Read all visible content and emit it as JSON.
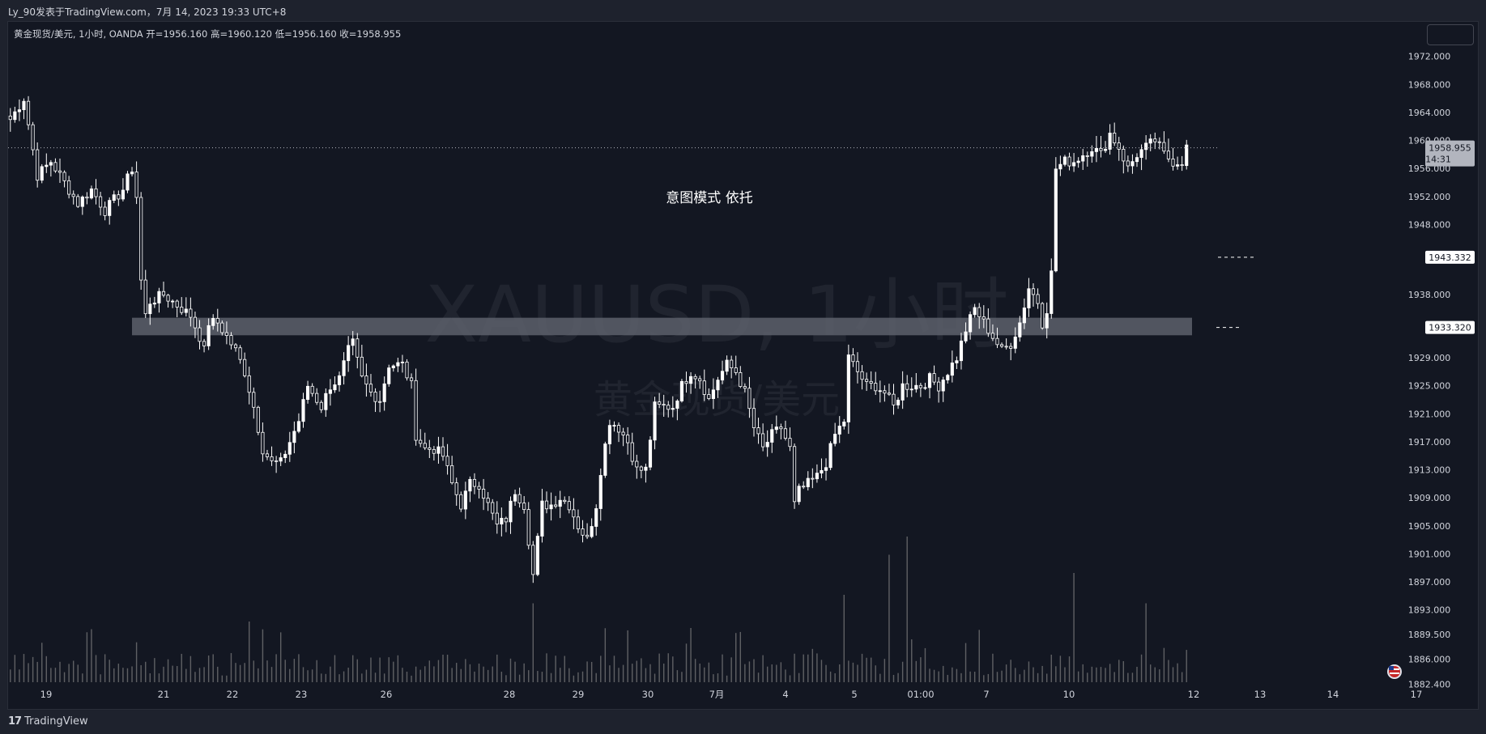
{
  "header": {
    "publish_info": "Ly_90发表于TradingView.com，7月 14, 2023 19:33 UTC+8"
  },
  "legend": {
    "text": "黄金现货/美元, 1小时, OANDA  开=1956.160  高=1960.120  低=1956.160  收=1958.955"
  },
  "watermark": {
    "symbol": "XAUUSD, 1小时",
    "description": "黄金现货/美元"
  },
  "annotation": {
    "text": "意图模式 依托"
  },
  "footer": {
    "brand_logo": "17",
    "brand_name": "TradingView"
  },
  "colors": {
    "background": "#131722",
    "frame": "#1e222d",
    "candle": "#ffffff",
    "volume": "#808080",
    "zone": "#5d606b"
  },
  "chart_data": {
    "type": "candlestick",
    "symbol": "XAUUSD",
    "timeframe": "1小时",
    "ylim": [
      1882.4,
      1975.6
    ],
    "y_ticks": [
      "1972.000",
      "1968.000",
      "1964.000",
      "1960.000",
      "1956.000",
      "1952.000",
      "1948.000",
      "1938.000",
      "1933.320",
      "1929.000",
      "1925.000",
      "1921.000",
      "1917.000",
      "1913.000",
      "1909.000",
      "1905.000",
      "1901.000",
      "1897.000",
      "1893.000",
      "1889.500",
      "1886.000",
      "1882.400"
    ],
    "x_ticks": [
      "19",
      "21",
      "22",
      "23",
      "26",
      "28",
      "29",
      "30",
      "7月",
      "4",
      "5",
      "01:00",
      "7",
      "10",
      "12",
      "13",
      "14",
      "17"
    ],
    "current_price": {
      "label": "1958.955",
      "countdown": "14:31",
      "value": 1958.955
    },
    "price_markers": [
      {
        "label": "1943.332",
        "value": 1943.332
      },
      {
        "label": "1933.320",
        "value": 1933.32
      }
    ],
    "support_zone": {
      "low": 1932.2,
      "high": 1934.7
    },
    "path_points": [
      [
        0,
        1963
      ],
      [
        3,
        1966
      ],
      [
        6,
        1955
      ],
      [
        9,
        1957
      ],
      [
        12,
        1954
      ],
      [
        15,
        1951
      ],
      [
        18,
        1953
      ],
      [
        21,
        1950
      ],
      [
        25,
        1953
      ],
      [
        27,
        1956
      ],
      [
        28,
        1952
      ],
      [
        29,
        1940
      ],
      [
        30,
        1935
      ],
      [
        31,
        1937
      ],
      [
        34,
        1938
      ],
      [
        36,
        1937
      ],
      [
        38,
        1936
      ],
      [
        40,
        1935
      ],
      [
        42,
        1932
      ],
      [
        43,
        1930
      ],
      [
        44,
        1934
      ],
      [
        46,
        1934
      ],
      [
        48,
        1932
      ],
      [
        50,
        1930
      ],
      [
        52,
        1927
      ],
      [
        54,
        1922
      ],
      [
        56,
        1916
      ],
      [
        58,
        1914
      ],
      [
        60,
        1914
      ],
      [
        62,
        1917
      ],
      [
        64,
        1920
      ],
      [
        66,
        1925
      ],
      [
        67,
        1924
      ],
      [
        69,
        1922
      ],
      [
        71,
        1925
      ],
      [
        73,
        1926
      ],
      [
        75,
        1930
      ],
      [
        76,
        1931
      ],
      [
        78,
        1926
      ],
      [
        80,
        1924
      ],
      [
        82,
        1923
      ],
      [
        84,
        1928
      ],
      [
        87,
        1928
      ],
      [
        89,
        1925
      ],
      [
        90,
        1918
      ],
      [
        92,
        1916
      ],
      [
        94,
        1916
      ],
      [
        96,
        1915
      ],
      [
        98,
        1911
      ],
      [
        100,
        1908
      ],
      [
        102,
        1911
      ],
      [
        104,
        1911
      ],
      [
        106,
        1908
      ],
      [
        108,
        1905
      ],
      [
        110,
        1906
      ],
      [
        112,
        1910
      ],
      [
        114,
        1908
      ],
      [
        116,
        1898
      ],
      [
        118,
        1908
      ],
      [
        120,
        1908
      ],
      [
        122,
        1909
      ],
      [
        124,
        1908
      ],
      [
        126,
        1905
      ],
      [
        128,
        1903
      ],
      [
        130,
        1908
      ],
      [
        131,
        1913
      ],
      [
        133,
        1920
      ],
      [
        135,
        1919
      ],
      [
        137,
        1917
      ],
      [
        139,
        1913
      ],
      [
        141,
        1913
      ],
      [
        143,
        1922
      ],
      [
        145,
        1922
      ],
      [
        147,
        1922
      ],
      [
        149,
        1925
      ],
      [
        151,
        1927
      ],
      [
        153,
        1926
      ],
      [
        155,
        1923
      ],
      [
        157,
        1926
      ],
      [
        159,
        1928
      ],
      [
        161,
        1927
      ],
      [
        163,
        1924
      ],
      [
        165,
        1919
      ],
      [
        167,
        1916
      ],
      [
        169,
        1918
      ],
      [
        171,
        1919
      ],
      [
        173,
        1916
      ],
      [
        174,
        1908
      ],
      [
        175,
        1910
      ],
      [
        177,
        1911
      ],
      [
        179,
        1912
      ],
      [
        181,
        1914
      ],
      [
        183,
        1918
      ],
      [
        185,
        1920
      ],
      [
        186,
        1929
      ],
      [
        188,
        1927
      ],
      [
        190,
        1925
      ],
      [
        192,
        1925
      ],
      [
        194,
        1924
      ],
      [
        196,
        1922
      ],
      [
        198,
        1925
      ],
      [
        200,
        1925
      ],
      [
        202,
        1925
      ],
      [
        204,
        1926
      ],
      [
        206,
        1925
      ],
      [
        208,
        1927
      ],
      [
        210,
        1929
      ],
      [
        212,
        1933
      ],
      [
        214,
        1936
      ],
      [
        216,
        1934
      ],
      [
        218,
        1932
      ],
      [
        220,
        1930
      ],
      [
        222,
        1931
      ],
      [
        224,
        1934
      ],
      [
        226,
        1939
      ],
      [
        228,
        1937
      ],
      [
        229,
        1934
      ],
      [
        230,
        1936
      ],
      [
        231,
        1941
      ],
      [
        232,
        1956
      ],
      [
        234,
        1957
      ],
      [
        236,
        1957
      ],
      [
        238,
        1958
      ],
      [
        240,
        1959
      ],
      [
        242,
        1958
      ],
      [
        244,
        1961
      ],
      [
        246,
        1959
      ],
      [
        248,
        1956
      ],
      [
        250,
        1958
      ],
      [
        252,
        1959
      ],
      [
        254,
        1960
      ],
      [
        256,
        1958
      ],
      [
        258,
        1957
      ],
      [
        260,
        1957
      ],
      [
        261,
        1959
      ]
    ],
    "volume_spikes": [
      [
        53,
        50
      ],
      [
        116,
        65
      ],
      [
        185,
        72
      ],
      [
        195,
        105
      ],
      [
        199,
        120
      ],
      [
        236,
        90
      ],
      [
        252,
        65
      ]
    ],
    "n_bars": 262
  }
}
